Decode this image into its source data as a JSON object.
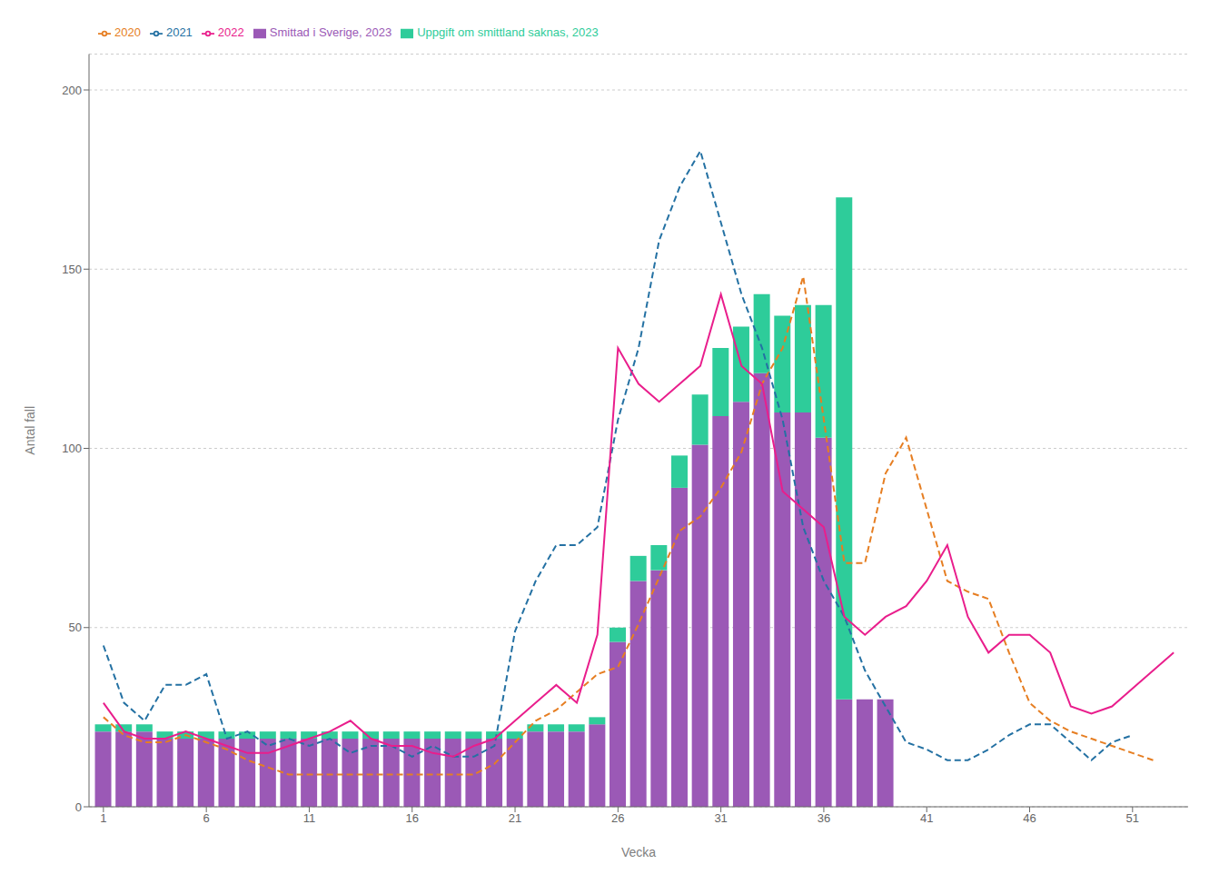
{
  "chart_data": {
    "type": "bar",
    "stacked": true,
    "grid": true,
    "legend": "top",
    "xlabel": "Vecka",
    "ylabel": "Antal fall",
    "x": [
      1,
      2,
      3,
      4,
      5,
      6,
      7,
      8,
      9,
      10,
      11,
      12,
      13,
      14,
      15,
      16,
      17,
      18,
      19,
      20,
      21,
      22,
      23,
      24,
      25,
      26,
      27,
      28,
      29,
      30,
      31,
      32,
      33,
      34,
      35,
      36,
      37,
      38,
      39,
      40,
      41,
      42,
      43,
      44,
      45,
      46,
      47,
      48,
      49,
      50,
      51,
      52,
      53
    ],
    "xlim": [
      0.3,
      53.7
    ],
    "xticks": [
      1,
      6,
      11,
      16,
      21,
      26,
      31,
      36,
      41,
      46,
      51
    ],
    "ylim": [
      0,
      210
    ],
    "yticks": [
      0,
      50,
      100,
      150,
      200
    ],
    "series": [
      {
        "name": "Smittad i Sverige, 2023",
        "type": "bar",
        "color": "#9B59B6",
        "values": [
          21,
          21,
          21,
          19,
          19,
          19,
          19,
          19,
          19,
          19,
          19,
          19,
          19,
          19,
          19,
          19,
          19,
          19,
          19,
          19,
          19,
          21,
          21,
          21,
          23,
          46,
          63,
          66,
          89,
          101,
          109,
          113,
          121,
          110,
          110,
          103,
          30,
          30,
          30,
          0,
          0,
          0,
          0,
          0,
          0,
          0,
          0,
          0,
          0,
          0,
          0,
          0,
          0
        ]
      },
      {
        "name": "Uppgift om smittland saknas, 2023",
        "type": "bar",
        "color": "#2ECC9A",
        "values": [
          2,
          2,
          2,
          2,
          2,
          2,
          2,
          2,
          2,
          2,
          2,
          2,
          2,
          2,
          2,
          2,
          2,
          2,
          2,
          2,
          2,
          2,
          2,
          2,
          2,
          4,
          7,
          7,
          9,
          14,
          19,
          21,
          22,
          27,
          30,
          37,
          140,
          0,
          0,
          0,
          0,
          0,
          0,
          0,
          0,
          0,
          0,
          0,
          0,
          0,
          0,
          0,
          0
        ]
      },
      {
        "name": "2020",
        "type": "line",
        "line_style": "dashed",
        "color": "#E67E22",
        "values": [
          25,
          20,
          18,
          18,
          20,
          18,
          16,
          13,
          11,
          9,
          9,
          9,
          9,
          9,
          9,
          9,
          9,
          9,
          9,
          12,
          18,
          24,
          27,
          32,
          37,
          39,
          51,
          64,
          77,
          81,
          89,
          99,
          118,
          128,
          148,
          108,
          68,
          68,
          93,
          103,
          83,
          63,
          60,
          58,
          43,
          29,
          24,
          21,
          19,
          17,
          15,
          13,
          null
        ]
      },
      {
        "name": "2021",
        "type": "line",
        "line_style": "dashed",
        "color": "#2471A3",
        "values": [
          45,
          29,
          24,
          34,
          34,
          37,
          19,
          21,
          17,
          19,
          17,
          19,
          15,
          17,
          17,
          14,
          17,
          14,
          14,
          17,
          49,
          63,
          73,
          73,
          78,
          108,
          128,
          158,
          173,
          183,
          163,
          143,
          128,
          108,
          78,
          63,
          53,
          38,
          28,
          18,
          16,
          13,
          13,
          16,
          20,
          23,
          23,
          18,
          13,
          18,
          20,
          null,
          null
        ]
      },
      {
        "name": "2022",
        "type": "line",
        "line_style": "solid",
        "color": "#E91E8C",
        "values": [
          29,
          21,
          19,
          19,
          21,
          19,
          17,
          15,
          15,
          17,
          19,
          21,
          24,
          19,
          17,
          17,
          15,
          14,
          17,
          19,
          24,
          29,
          34,
          29,
          48,
          128,
          118,
          113,
          118,
          123,
          143,
          123,
          118,
          88,
          83,
          78,
          53,
          48,
          53,
          56,
          63,
          73,
          53,
          43,
          48,
          48,
          43,
          28,
          26,
          28,
          33,
          38,
          43
        ]
      }
    ]
  }
}
